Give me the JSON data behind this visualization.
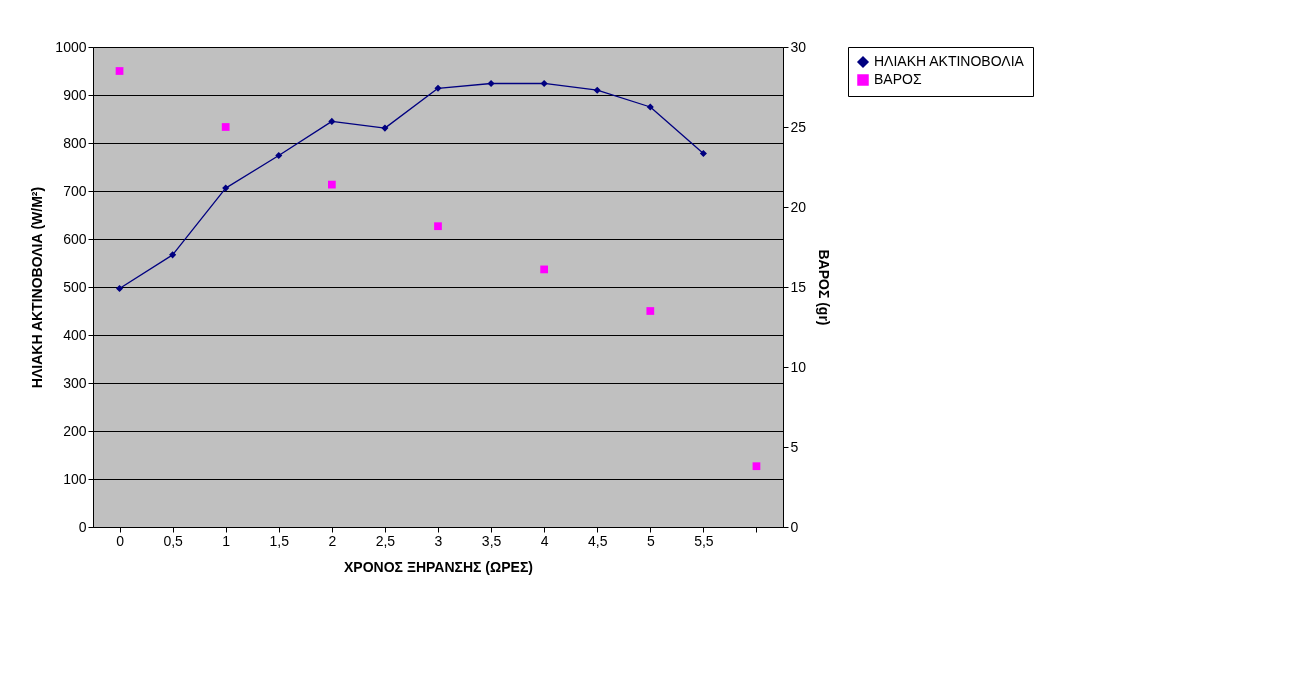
{
  "chart_data": {
    "type": "line",
    "xlabel": "ΧΡΟΝΟΣ ΞΗΡΑΝΣΗΣ (ΩΡΕΣ)",
    "ylabel": "ΗΛΙΑΚΗ ΑΚΤΙΝΟΒΟΛΙΑ (W/M²)",
    "y2label": "ΒΑΡΟΣ (gr)",
    "categories": [
      "0",
      "0,5",
      "1",
      "1,5",
      "2",
      "2,5",
      "3",
      "3,5",
      "4",
      "4,5",
      "5",
      "5,5",
      null
    ],
    "series": [
      {
        "name": "ΗΛΙΑΚΗ ΑΚΤΙΝΟΒΟΛΙΑ",
        "color": "#000080",
        "marker": "diamond",
        "values": [
          497,
          567,
          706,
          774,
          845,
          831,
          914,
          924,
          924,
          910,
          875,
          778,
          null
        ]
      },
      {
        "name": "ΒΑΡΟΣ",
        "type": "scatter",
        "axis": "y2",
        "color": "#ff00ff",
        "marker": "square",
        "values": [
          28.5,
          null,
          25,
          null,
          21.4,
          null,
          18.8,
          null,
          16.1,
          null,
          13.5,
          null,
          3.8
        ]
      }
    ],
    "ylim": [
      0,
      1000
    ],
    "yticks": [
      0,
      100,
      200,
      300,
      400,
      500,
      600,
      700,
      800,
      900,
      1000
    ],
    "y2lim": [
      0,
      30
    ],
    "y2ticks": [
      0,
      5,
      10,
      15,
      20,
      25,
      30
    ],
    "grid": "y",
    "legend": "right"
  }
}
